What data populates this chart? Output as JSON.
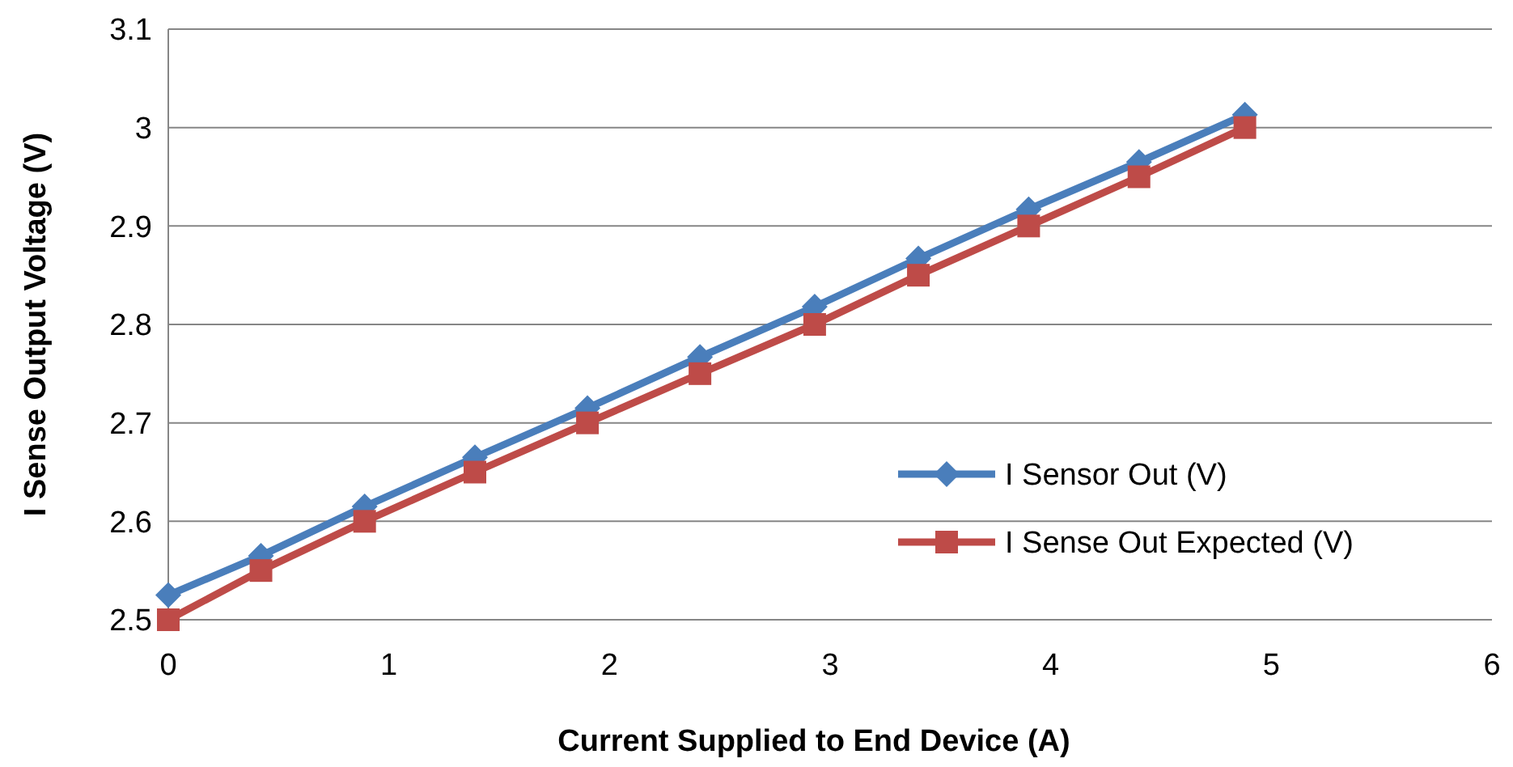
{
  "chart_data": {
    "type": "line",
    "xlabel": "Current Supplied to End Device (A)",
    "ylabel": "I Sense Output Voltage (V)",
    "xlim": [
      0,
      6
    ],
    "xticks": [
      0,
      1,
      2,
      3,
      4,
      5,
      6
    ],
    "ylim": [
      2.5,
      3.1
    ],
    "yticks": [
      2.5,
      2.6,
      2.7,
      2.8,
      2.9,
      3,
      3.1
    ],
    "grid": "y",
    "legend": "right",
    "line_style": "solid",
    "series": [
      {
        "name": "I Sensor Out (V)",
        "color": "#4a7ebb",
        "marker": "diamond",
        "x": [
          0,
          0.42,
          0.89,
          1.39,
          1.9,
          2.41,
          2.93,
          3.4,
          3.9,
          4.4,
          4.88
        ],
        "values": [
          2.525,
          2.565,
          2.615,
          2.665,
          2.715,
          2.767,
          2.818,
          2.867,
          2.917,
          2.965,
          3.013
        ]
      },
      {
        "name": "I Sense Out Expected (V)",
        "color": "#be4b48",
        "marker": "square",
        "x": [
          0,
          0.42,
          0.89,
          1.39,
          1.9,
          2.41,
          2.93,
          3.4,
          3.9,
          4.4,
          4.88
        ],
        "values": [
          2.5,
          2.55,
          2.6,
          2.65,
          2.7,
          2.75,
          2.8,
          2.85,
          2.9,
          2.95,
          3
        ]
      }
    ]
  }
}
